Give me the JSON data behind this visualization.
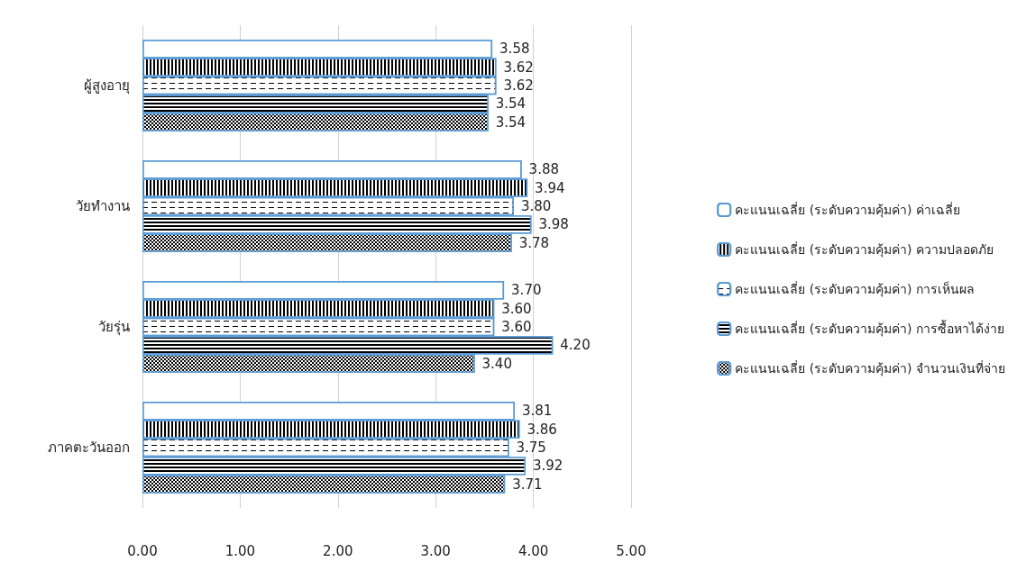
{
  "chart_data": {
    "type": "bar",
    "orientation": "horizontal",
    "categories": [
      "ผู้สูงอายุ",
      "วัยทำงาน",
      "วัยรุ่น",
      "ภาคตะวันออก"
    ],
    "series": [
      {
        "name": "คะแนนเฉลี่ย (ระดับความคุ้มค่า) ค่าเฉลี่ย",
        "color": "#ffffff",
        "values": [
          3.58,
          3.88,
          3.7,
          3.81
        ],
        "value_labels": [
          "3.58",
          "3.88",
          "3.70",
          "3.81"
        ]
      },
      {
        "name": "คะแนนเฉลี่ย (ระดับความคุ้มค่า) ความปลอดภัย",
        "color": "#000000",
        "values": [
          3.62,
          3.94,
          3.6,
          3.86
        ],
        "value_labels": [
          "3.62",
          "3.94",
          "3.60",
          "3.86"
        ]
      },
      {
        "name": "คะแนนเฉลี่ย (ระดับความคุ้มค่า) การเห็นผล",
        "color": "#ffffff",
        "values": [
          3.62,
          3.8,
          3.6,
          3.75
        ],
        "value_labels": [
          "3.62",
          "3.80",
          "3.60",
          "3.75"
        ]
      },
      {
        "name": "คะแนนเฉลี่ย (ระดับความคุ้มค่า) การซื้อหาได้ง่าย",
        "color": "#000000",
        "values": [
          3.54,
          3.98,
          4.2,
          3.92
        ],
        "value_labels": [
          "3.54",
          "3.98",
          "4.20",
          "3.92"
        ]
      },
      {
        "name": "คะแนนเฉลี่ย (ระดับความคุ้มค่า) จำนวนเงินที่จ่าย",
        "color": "#000000",
        "values": [
          3.54,
          3.78,
          3.4,
          3.71
        ],
        "value_labels": [
          "3.54",
          "3.78",
          "3.40",
          "3.71"
        ]
      }
    ],
    "xlim": [
      0,
      5
    ],
    "xticks": [
      {
        "value": 0,
        "label": "0.00"
      },
      {
        "value": 1,
        "label": "1.00"
      },
      {
        "value": 2,
        "label": "2.00"
      },
      {
        "value": 3,
        "label": "3.00"
      },
      {
        "value": 4,
        "label": "4.00"
      },
      {
        "value": 5,
        "label": "5.00"
      }
    ],
    "grid": "x",
    "legend": "right"
  }
}
